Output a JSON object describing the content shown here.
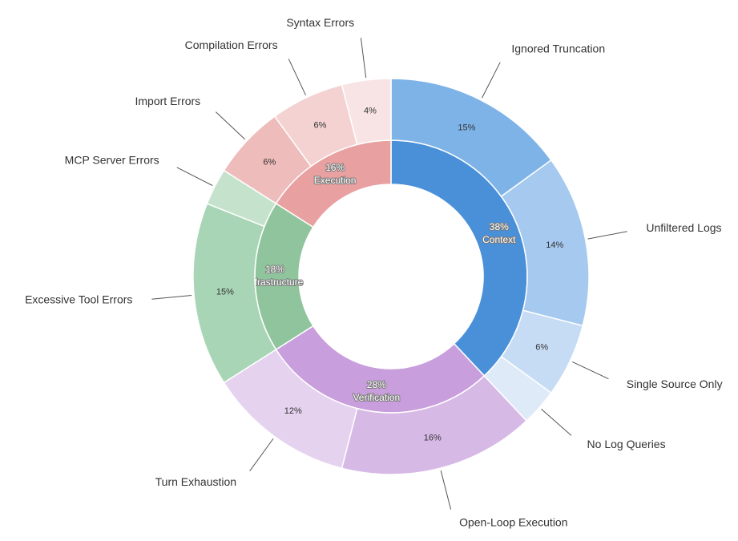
{
  "chart_data": {
    "type": "sunburst",
    "inner": {
      "categories": [
        "Context",
        "Verification",
        "Infrastructure",
        "Execution"
      ],
      "values": [
        38,
        28,
        18,
        16
      ],
      "value_labels": [
        "38%",
        "28%",
        "18%",
        "16%"
      ],
      "colors": [
        "#4a90d9",
        "#c89fdc",
        "#8fc49c",
        "#e8a0a0"
      ]
    },
    "outer": {
      "categories": [
        "Ignored Truncation",
        "Unfiltered Logs",
        "Single Source Only",
        "No Log Queries",
        "Open-Loop Execution",
        "Turn Exhaustion",
        "Excessive Tool Errors",
        "MCP Server Errors",
        "Import Errors",
        "Compilation Errors",
        "Syntax Errors"
      ],
      "values": [
        15,
        14,
        6,
        3,
        16,
        12,
        15,
        3,
        6,
        6,
        4
      ],
      "value_labels": [
        "15%",
        "14%",
        "6%",
        null,
        "16%",
        "12%",
        "15%",
        null,
        "6%",
        "6%",
        "4%"
      ],
      "colors": [
        "#7eb3e8",
        "#a6c9f0",
        "#c6dcf5",
        "#deeaf8",
        "#d7b9e6",
        "#e5d2ef",
        "#a8d5b5",
        "#c5e2cc",
        "#efbcbc",
        "#f3d2d1",
        "#f8e4e4"
      ]
    }
  }
}
